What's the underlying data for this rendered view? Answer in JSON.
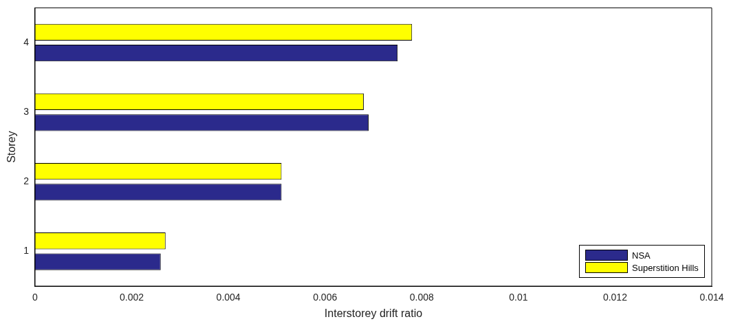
{
  "chart_data": {
    "type": "bar",
    "orientation": "horizontal",
    "xlabel": "Interstorey drift ratio",
    "ylabel": "Storey",
    "categories": [
      "4",
      "3",
      "2",
      "1"
    ],
    "series": [
      {
        "name": "NSA",
        "color": "#2b2a8c",
        "values": [
          0.0075,
          0.0069,
          0.0051,
          0.0026
        ]
      },
      {
        "name": "Superstition Hills",
        "color": "#ffff00",
        "values": [
          0.0078,
          0.0068,
          0.0051,
          0.0027
        ]
      }
    ],
    "xlim": [
      0,
      0.014
    ],
    "xticks": [
      0,
      0.002,
      0.004,
      0.006,
      0.008,
      0.01,
      0.012,
      0.014
    ],
    "grid": false,
    "legend": "bottom right"
  }
}
